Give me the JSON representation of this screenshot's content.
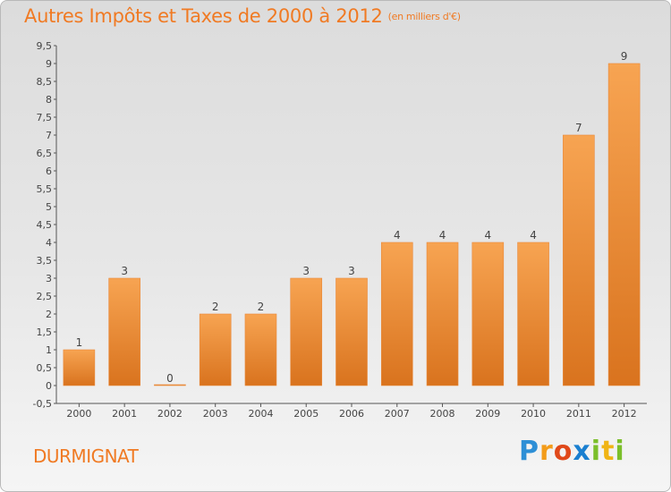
{
  "chart_data": {
    "type": "bar",
    "title": "Autres Impôts et Taxes de 2000 à 2012",
    "unit_note": "(en milliers d'€)",
    "categories": [
      "2000",
      "2001",
      "2002",
      "2003",
      "2004",
      "2005",
      "2006",
      "2007",
      "2008",
      "2009",
      "2010",
      "2011",
      "2012"
    ],
    "values": [
      1,
      3,
      0,
      2,
      2,
      3,
      3,
      4,
      4,
      4,
      4,
      7,
      9
    ],
    "data_labels": [
      "1",
      "3",
      "0",
      "2",
      "2",
      "3",
      "3",
      "4",
      "4",
      "4",
      "4",
      "7",
      "9"
    ],
    "ylim": [
      -0.5,
      9.5
    ],
    "yticks": [
      "-0,5",
      "0",
      "0,5",
      "1",
      "1,5",
      "2",
      "2,5",
      "3",
      "3,5",
      "4",
      "4,5",
      "5",
      "5,5",
      "6",
      "6,5",
      "7",
      "7,5",
      "8",
      "8,5",
      "9",
      "9,5"
    ],
    "grid": false,
    "bar_color": "#f39a45"
  },
  "footer": {
    "commune": "DURMIGNAT",
    "brand_letters": [
      "P",
      "r",
      "o",
      "x",
      "i",
      "t",
      "i"
    ]
  }
}
